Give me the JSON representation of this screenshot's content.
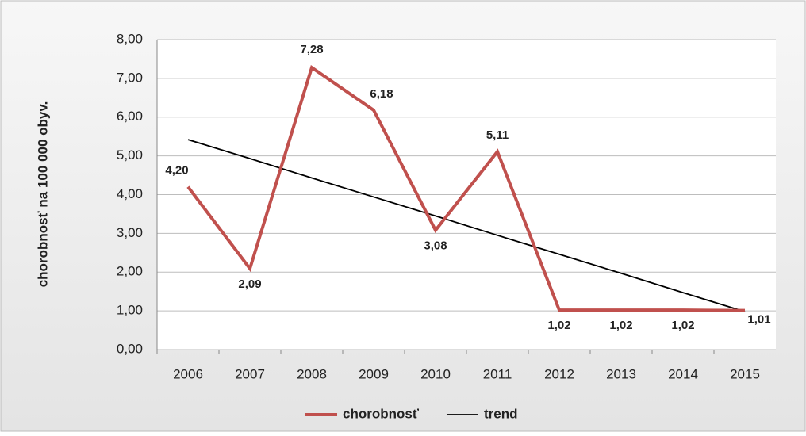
{
  "chart_data": {
    "type": "line",
    "y_label": "chorobnosť na 100 000 obyv.",
    "categories": [
      "2006",
      "2007",
      "2008",
      "2009",
      "2010",
      "2011",
      "2012",
      "2013",
      "2014",
      "2015"
    ],
    "series": [
      {
        "name": "chorobnosť",
        "color": "#c0504d",
        "values": [
          4.2,
          2.09,
          7.28,
          6.18,
          3.08,
          5.11,
          1.02,
          1.02,
          1.02,
          1.01
        ],
        "value_labels": [
          "4,20",
          "2,09",
          "7,28",
          "6,18",
          "3,08",
          "5,11",
          "1,02",
          "1,02",
          "1,02",
          "1,01"
        ]
      },
      {
        "name": "trend",
        "color": "#000000",
        "values": [
          5.42,
          4.93,
          4.43,
          3.94,
          3.45,
          2.95,
          2.46,
          1.97,
          1.47,
          0.98
        ]
      }
    ],
    "ylim": [
      0,
      8
    ],
    "yticks": [
      {
        "value": 0,
        "label": "0,00"
      },
      {
        "value": 1,
        "label": "1,00"
      },
      {
        "value": 2,
        "label": "2,00"
      },
      {
        "value": 3,
        "label": "3,00"
      },
      {
        "value": 4,
        "label": "4,00"
      },
      {
        "value": 5,
        "label": "5,00"
      },
      {
        "value": 6,
        "label": "6,00"
      },
      {
        "value": 7,
        "label": "7,00"
      },
      {
        "value": 8,
        "label": "8,00"
      }
    ],
    "grid": true,
    "legend": "bottom"
  }
}
